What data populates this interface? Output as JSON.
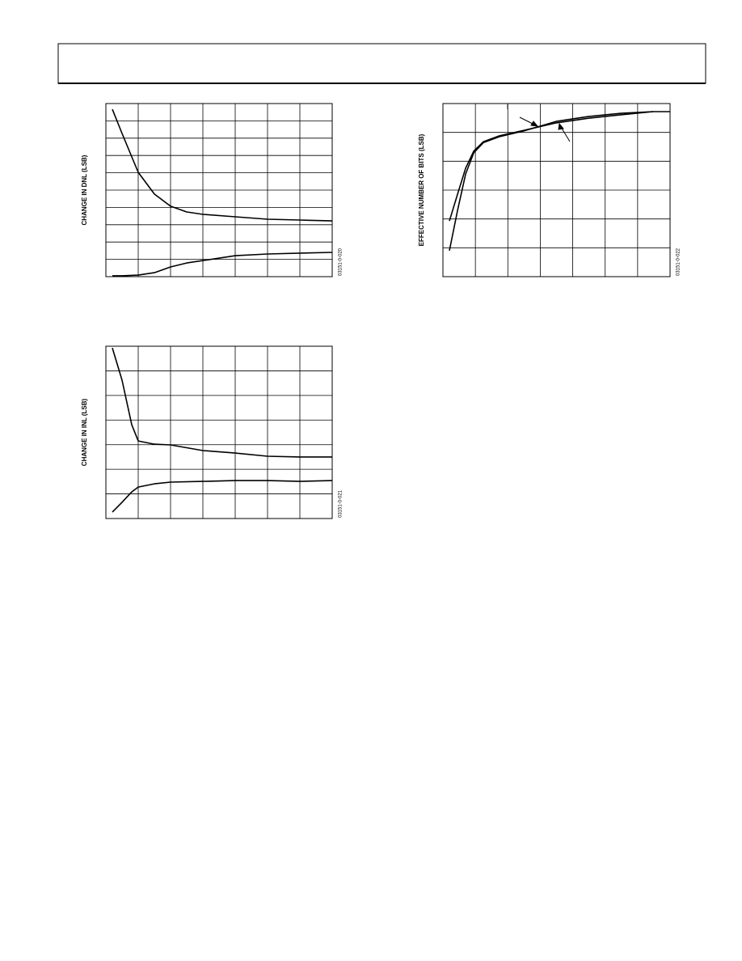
{
  "chart_data": [
    {
      "type": "line",
      "y_label": "CHANGE IN DNL (LSB)",
      "code": "03151-0-020",
      "x": [
        0.2,
        0.5,
        1,
        1.5,
        2,
        2.5,
        3,
        4,
        5,
        6,
        7
      ],
      "series": [
        {
          "color": "#000000",
          "values": [
            9.67,
            8.27,
            6.03,
            4.77,
            4.07,
            3.74,
            3.6,
            3.46,
            3.32,
            3.27,
            3.22
          ]
        },
        {
          "color": "#000000",
          "values": [
            0.05,
            0.05,
            0.09,
            0.23,
            0.56,
            0.79,
            0.93,
            1.21,
            1.31,
            1.36,
            1.4
          ]
        }
      ],
      "xlim": [
        0,
        7
      ],
      "ylim": [
        0,
        10
      ],
      "grid_divisions": [
        7,
        10
      ]
    },
    {
      "type": "line",
      "y_label": "CHANGE IN INL (LSB)",
      "code": "03151-0-021",
      "x": [
        0.2,
        0.5,
        0.8,
        1,
        1.5,
        2,
        3,
        4,
        5,
        6,
        7
      ],
      "series": [
        {
          "color": "#000000",
          "values": [
            6.93,
            5.62,
            3.81,
            3.15,
            3.02,
            2.99,
            2.76,
            2.66,
            2.53,
            2.5,
            2.5
          ]
        },
        {
          "color": "#000000",
          "values": [
            0.26,
            0.66,
            1.08,
            1.28,
            1.41,
            1.48,
            1.51,
            1.54,
            1.54,
            1.51,
            1.54
          ]
        }
      ],
      "xlim": [
        0,
        7
      ],
      "ylim": [
        0,
        7
      ],
      "grid_divisions": [
        7,
        7
      ]
    },
    {
      "type": "line",
      "y_label": "EFFECTIVE NUMBER OF BITS (LSB)",
      "code": "03151-0-022",
      "x": [
        0.2,
        0.45,
        0.7,
        0.95,
        1.25,
        1.74,
        2.49,
        3.49,
        4.48,
        5.48,
        6.48,
        7
      ],
      "series": [
        {
          "color": "#000000",
          "values": [
            1.93,
            2.86,
            3.76,
            4.35,
            4.68,
            4.88,
            5.07,
            5.33,
            5.49,
            5.61,
            5.72,
            5.72
          ]
        },
        {
          "color": "#000000",
          "values": [
            0.9,
            2.3,
            3.56,
            4.29,
            4.65,
            4.85,
            5.05,
            5.38,
            5.55,
            5.66,
            5.72,
            null
          ]
        }
      ],
      "xlim": [
        0,
        7
      ],
      "ylim": [
        0,
        6
      ],
      "grid_divisions": [
        7,
        6
      ]
    }
  ]
}
